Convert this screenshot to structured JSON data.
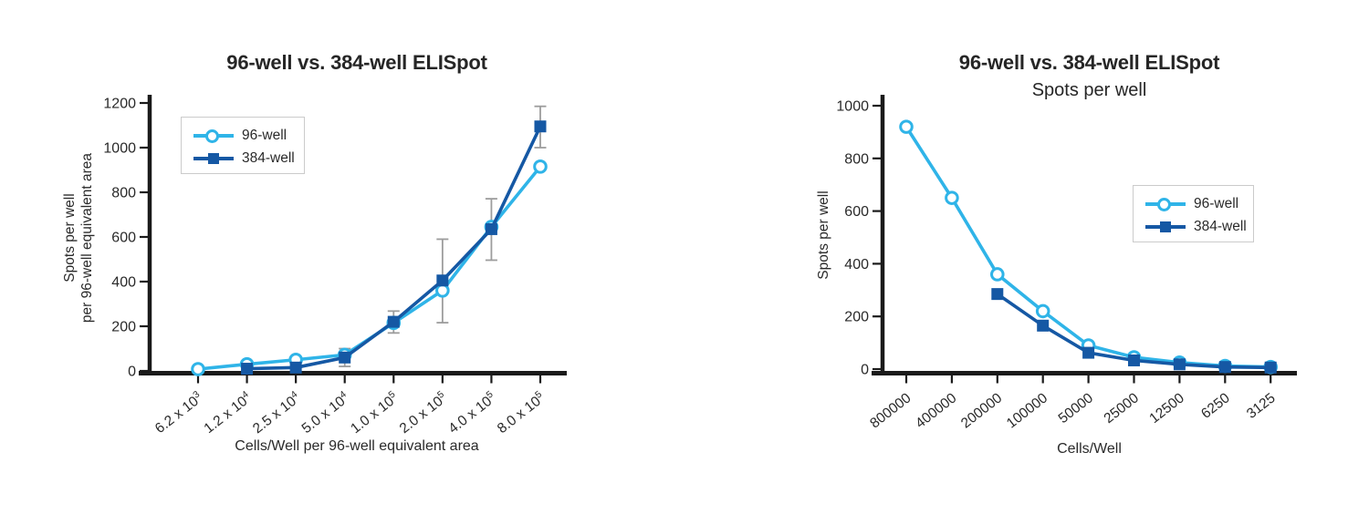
{
  "page": {
    "background": "#ffffff"
  },
  "colors": {
    "series_96_well": "#2FB4E8",
    "series_384_well": "#1558A4",
    "axis": "#1a1a1a",
    "error_bar": "#9c9c9c",
    "text": "#2a2a2a",
    "legend_border": "#cbcbcb"
  },
  "chart_data": [
    {
      "type": "line",
      "title": "96-well vs. 384-well ELISpot",
      "subtitle": "",
      "xlabel": "Cells/Well per 96-well equivalent area",
      "ylabel_lines": [
        "Spots per well",
        "per 96-well equivalent area"
      ],
      "categories": [
        "6.2 x 10^3",
        "1.2 x 10^4",
        "2.5 x 10^4",
        "5.0 x 10^4",
        "1.0 x 10^5",
        "2.0 x 10^5",
        "4.0 x 10^5",
        "8.0 x 10^5"
      ],
      "ylim": [
        0,
        1200
      ],
      "ytick_step": 200,
      "grid": false,
      "legend_position": "upper-left",
      "series": [
        {
          "name": "96-well",
          "marker": "circle",
          "color_key": "series_96_well",
          "start_index": 0,
          "values": [
            8,
            30,
            50,
            72,
            215,
            360,
            645,
            915
          ]
        },
        {
          "name": "384-well",
          "marker": "square",
          "color_key": "series_384_well",
          "start_index": 1,
          "values": [
            10,
            15,
            60,
            220,
            405,
            635,
            1095
          ]
        }
      ],
      "error_bars": [
        {
          "index": 3,
          "low": 20,
          "high": 100
        },
        {
          "index": 4,
          "low": 170,
          "high": 268
        },
        {
          "index": 5,
          "low": 216,
          "high": 590
        },
        {
          "index": 6,
          "low": 496,
          "high": 771
        },
        {
          "index": 7,
          "low": 1000,
          "high": 1185
        }
      ]
    },
    {
      "type": "line",
      "title": "96-well vs. 384-well ELISpot",
      "subtitle": "Spots per well",
      "xlabel": "Cells/Well",
      "ylabel_lines": [
        "Spots per well"
      ],
      "categories": [
        "800000",
        "400000",
        "200000",
        "100000",
        "50000",
        "25000",
        "12500",
        "6250",
        "3125"
      ],
      "ylim": [
        0,
        1000
      ],
      "ytick_step": 200,
      "grid": false,
      "legend_position": "middle-right",
      "series": [
        {
          "name": "96-well",
          "marker": "circle",
          "color_key": "series_96_well",
          "start_index": 0,
          "values": [
            920,
            650,
            360,
            220,
            90,
            45,
            25,
            12,
            8
          ]
        },
        {
          "name": "384-well",
          "marker": "square",
          "color_key": "series_384_well",
          "start_index": 2,
          "values": [
            285,
            165,
            62,
            33,
            18,
            8,
            6
          ]
        }
      ],
      "error_bars": []
    }
  ]
}
